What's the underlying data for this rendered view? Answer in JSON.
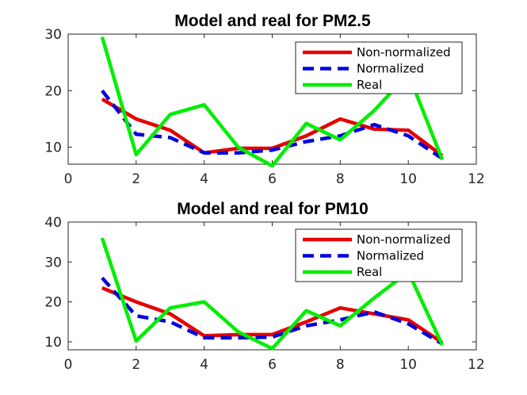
{
  "chart_data": [
    {
      "type": "line",
      "title": "Model and real for PM2.5",
      "xlabel": "",
      "ylabel": "",
      "xlim": [
        0,
        12
      ],
      "ylim": [
        7,
        30
      ],
      "xticks": [
        "0",
        "2",
        "4",
        "6",
        "8",
        "10",
        "12"
      ],
      "yticks": [
        "10",
        "20",
        "30"
      ],
      "x": [
        1,
        2,
        3,
        4,
        5,
        6,
        7,
        8,
        9,
        10,
        11
      ],
      "legend_position": "top-right",
      "grid": false,
      "series": [
        {
          "name": "Non-normalized",
          "color": "#e60000",
          "style": "solid",
          "values": [
            18.5,
            15.0,
            13.0,
            9.0,
            9.8,
            9.8,
            12.0,
            15.0,
            13.2,
            13.0,
            8.5
          ]
        },
        {
          "name": "Normalized",
          "color": "#0000dd",
          "style": "dashed",
          "values": [
            20.0,
            12.3,
            11.7,
            9.0,
            9.0,
            9.5,
            11.0,
            12.0,
            14.0,
            12.0,
            8.0
          ]
        },
        {
          "name": "Real",
          "color": "#00ee00",
          "style": "solid",
          "values": [
            29.5,
            8.7,
            15.8,
            17.5,
            10.0,
            6.7,
            14.2,
            11.3,
            16.5,
            23.0,
            7.8
          ]
        }
      ]
    },
    {
      "type": "line",
      "title": "Model and real for PM10",
      "xlabel": "",
      "ylabel": "",
      "xlim": [
        0,
        12
      ],
      "ylim": [
        8,
        40
      ],
      "xticks": [
        "0",
        "2",
        "4",
        "6",
        "8",
        "10",
        "12"
      ],
      "yticks": [
        "10",
        "20",
        "30",
        "40"
      ],
      "x": [
        1,
        2,
        3,
        4,
        5,
        6,
        7,
        8,
        9,
        10,
        11
      ],
      "legend_position": "top-right",
      "grid": false,
      "series": [
        {
          "name": "Non-normalized",
          "color": "#e60000",
          "style": "solid",
          "values": [
            23.5,
            20.0,
            17.0,
            11.5,
            11.8,
            11.8,
            15.0,
            18.5,
            17.0,
            15.5,
            9.8
          ]
        },
        {
          "name": "Normalized",
          "color": "#0000dd",
          "style": "dashed",
          "values": [
            26.0,
            16.5,
            15.0,
            11.0,
            11.0,
            11.2,
            14.0,
            15.5,
            17.5,
            14.5,
            9.5
          ]
        },
        {
          "name": "Real",
          "color": "#00ee00",
          "style": "solid",
          "values": [
            36.0,
            10.2,
            18.5,
            20.0,
            12.5,
            8.3,
            17.8,
            14.0,
            21.0,
            27.5,
            9.2
          ]
        }
      ]
    }
  ]
}
